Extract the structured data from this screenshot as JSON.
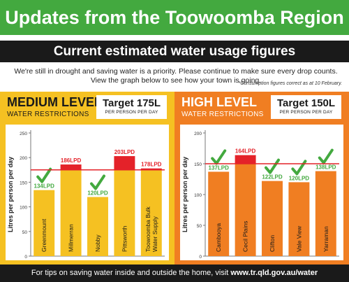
{
  "header": {
    "title": "Updates from the Toowoomba Region",
    "subtitle": "Current estimated water usage figures"
  },
  "intro": {
    "line1": "We're still in drought and saving water is a priority. Please continue to make sure every drop counts.",
    "line2": "View the graph below to see how your town is going.",
    "footnote": "*Consumption figures correct as at 10 February."
  },
  "footer": {
    "text": "For tips on saving water inside and outside the home, visit ",
    "link": "www.tr.qld.gov.au/water"
  },
  "colors": {
    "green": "#43a93f",
    "yellow": "#f5c122",
    "orange": "#f07e22",
    "red": "#e42229",
    "dark": "#1a1a1a"
  },
  "panels": [
    {
      "level_title": "MEDIUM LEVEL",
      "level_sub": "WATER RESTRICTIONS",
      "target": "Target 175L",
      "target_sub": "PER PERSON PER DAY"
    },
    {
      "level_title": "HIGH LEVEL",
      "level_sub": "WATER RESTRICTIONS",
      "target": "Target 150L",
      "target_sub": "PER PERSON PER DAY"
    }
  ],
  "chart_data": [
    {
      "type": "bar",
      "ylabel": "Litres per person per day",
      "ylim": [
        0,
        250
      ],
      "yticks": [
        0,
        50,
        100,
        150,
        200,
        250
      ],
      "target": 175,
      "categories": [
        "Greenmount",
        "Millmerran",
        "Nobby",
        "Pittsworth",
        "Toowoomba Bulk Water Supply"
      ],
      "category_lines": [
        [
          "Greenmount"
        ],
        [
          "Millmerran"
        ],
        [
          "Nobby"
        ],
        [
          "Pittsworth"
        ],
        [
          "Toowoomba Bulk",
          "Water Supply"
        ]
      ],
      "values": [
        134,
        186,
        120,
        203,
        178
      ],
      "data_labels": [
        "134LPD",
        "186LPD",
        "120LPD",
        "203LPD",
        "178LPD"
      ],
      "checkmarks": [
        true,
        false,
        true,
        false,
        false
      ],
      "bar_color": "#f5c122",
      "over_color": "#e42229",
      "check_color": "#43a93f",
      "grid": false
    },
    {
      "type": "bar",
      "ylabel": "Litres per person per day",
      "ylim": [
        0,
        200
      ],
      "yticks": [
        0,
        50,
        100,
        150,
        200
      ],
      "target": 150,
      "categories": [
        "Cambooya",
        "Cecil Plains",
        "Clifton",
        "Vale View",
        "Yarraman"
      ],
      "category_lines": [
        [
          "Cambooya"
        ],
        [
          "Cecil Plains"
        ],
        [
          "Clifton"
        ],
        [
          "Vale View"
        ],
        [
          "Yarraman"
        ]
      ],
      "values": [
        137,
        164,
        122,
        120,
        138
      ],
      "data_labels": [
        "137LPD",
        "164LPD",
        "122LPD",
        "120LPD",
        "138LPD"
      ],
      "checkmarks": [
        true,
        false,
        true,
        true,
        true
      ],
      "bar_color": "#f07e22",
      "over_color": "#e42229",
      "check_color": "#43a93f",
      "grid": false
    }
  ]
}
